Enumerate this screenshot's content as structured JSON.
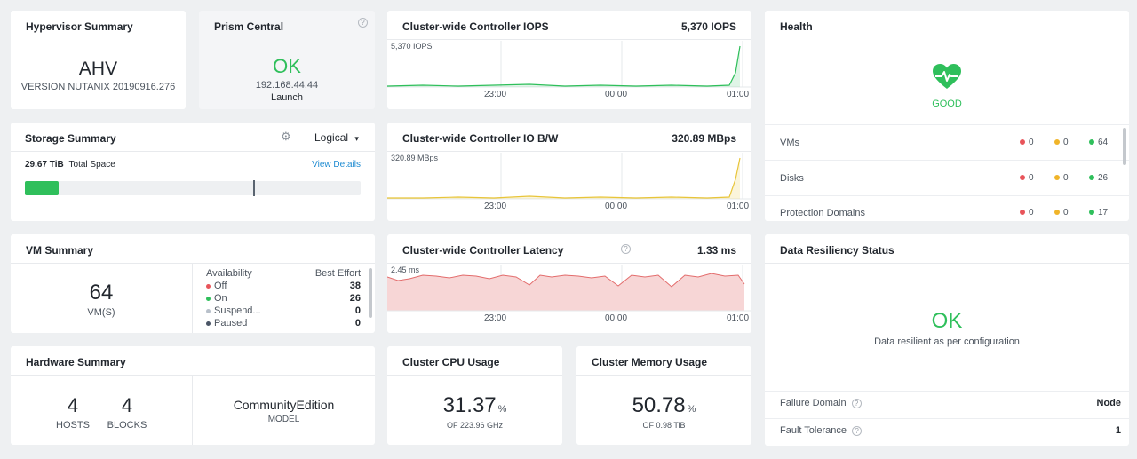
{
  "hypervisor": {
    "title": "Hypervisor Summary",
    "name": "AHV",
    "version": "VERSION NUTANIX 20190916.276"
  },
  "prism": {
    "title": "Prism Central",
    "status": "OK",
    "ip": "192.168.44.44",
    "launch": "Launch",
    "help": "?"
  },
  "iops": {
    "title": "Cluster-wide Controller IOPS",
    "value": "5,370 IOPS",
    "peak_label": "5,370 IOPS",
    "ticks": [
      "23:00",
      "00:00",
      "01:00"
    ],
    "color": "#2fbf5b"
  },
  "bw": {
    "title": "Cluster-wide Controller IO B/W",
    "value": "320.89 MBps",
    "peak_label": "320.89 MBps",
    "ticks": [
      "23:00",
      "00:00",
      "01:00"
    ],
    "color": "#e8c53a"
  },
  "latency": {
    "title": "Cluster-wide Controller Latency",
    "value": "1.33 ms",
    "peak_label": "2.45 ms",
    "ticks": [
      "23:00",
      "00:00",
      "01:00"
    ],
    "color": "#e36c6c",
    "help": "?"
  },
  "health": {
    "title": "Health",
    "status": "GOOD",
    "rows": [
      {
        "label": "VMs",
        "red": "0",
        "yellow": "0",
        "green": "64"
      },
      {
        "label": "Disks",
        "red": "0",
        "yellow": "0",
        "green": "26"
      },
      {
        "label": "Protection Domains",
        "red": "0",
        "yellow": "0",
        "green": "17"
      }
    ],
    "colors": {
      "red": "#e8545a",
      "yellow": "#f0b429",
      "green": "#2fbf5b"
    }
  },
  "storage": {
    "title": "Storage Summary",
    "mode": "Logical",
    "total_value": "29.67 TiB",
    "total_label": "Total Space",
    "view_details": "View Details",
    "used_fraction": 0.1,
    "threshold_fraction": 0.68
  },
  "vm": {
    "title": "VM Summary",
    "count": "64",
    "count_label": "VM(S)",
    "availability_label": "Availability",
    "best_effort_label": "Best Effort",
    "rows": [
      {
        "label": "Off",
        "value": "38",
        "color": "#e8545a"
      },
      {
        "label": "On",
        "value": "26",
        "color": "#2fbf5b"
      },
      {
        "label": "Suspend...",
        "value": "0",
        "color": "#b8c0ca"
      },
      {
        "label": "Paused",
        "value": "0",
        "color": "#4a5566"
      }
    ]
  },
  "resiliency": {
    "title": "Data Resiliency Status",
    "status": "OK",
    "message": "Data resilient as per configuration",
    "failure_domain_label": "Failure Domain",
    "failure_domain_value": "Node",
    "fault_tolerance_label": "Fault Tolerance",
    "fault_tolerance_value": "1"
  },
  "hardware": {
    "title": "Hardware Summary",
    "hosts": "4",
    "hosts_label": "HOSTS",
    "blocks": "4",
    "blocks_label": "BLOCKS",
    "model": "CommunityEdition",
    "model_label": "MODEL"
  },
  "cpu": {
    "title": "Cluster CPU Usage",
    "value": "31.37",
    "unit": "%",
    "sub": "OF 223.96 GHz"
  },
  "mem": {
    "title": "Cluster Memory Usage",
    "value": "50.78",
    "unit": "%",
    "sub": "OF 0.98 TiB"
  }
}
